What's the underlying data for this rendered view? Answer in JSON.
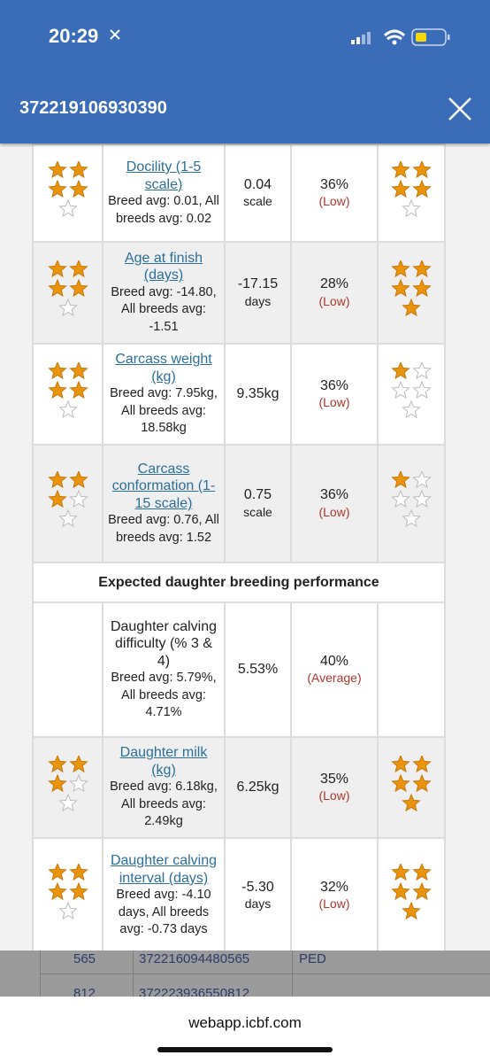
{
  "status_bar": {
    "time": "20:29"
  },
  "header": {
    "title": "372219106930390"
  },
  "table": {
    "rows": [
      {
        "stars_left": 4,
        "trait": "Docility (1-5 scale)",
        "trait_link": true,
        "averages": "Breed avg: 0.01, All breeds avg: 0.02",
        "value": "0.04",
        "unit": "scale",
        "reliability": "36%",
        "reliability_label": "(Low)",
        "stars_right": 4
      },
      {
        "stars_left": 4,
        "trait": "Age at finish (days)",
        "trait_link": true,
        "averages": "Breed avg: -14.80, All breeds avg: -1.51",
        "value": "-17.15",
        "unit": "days",
        "reliability": "28%",
        "reliability_label": "(Low)",
        "stars_right": 5
      },
      {
        "stars_left": 4,
        "trait": "Carcass weight (kg)",
        "trait_link": true,
        "averages": "Breed avg: 7.95kg, All breeds avg: 18.58kg",
        "value": "9.35kg",
        "reliability": "36%",
        "reliability_label": "(Low)",
        "stars_right": 1
      },
      {
        "stars_left": 3,
        "trait": "Carcass conformation (1-15 scale)",
        "trait_link": true,
        "averages": "Breed avg: 0.76, All breeds avg: 1.52",
        "value": "0.75",
        "unit": "scale",
        "reliability": "36%",
        "reliability_label": "(Low)",
        "stars_right": 1
      }
    ],
    "section": "Expected daughter breeding performance",
    "daughter_rows": [
      {
        "trait": "Daughter calving difficulty (% 3 & 4)",
        "trait_link": false,
        "averages": "Breed avg: 5.79%, All breeds avg: 4.71%",
        "value": "5.53%",
        "reliability": "40%",
        "reliability_label": "(Average)"
      },
      {
        "stars_left": 3,
        "trait": "Daughter milk (kg)",
        "trait_link": true,
        "averages": "Breed avg: 6.18kg, All breeds avg: 2.49kg",
        "value": "6.25kg",
        "reliability": "35%",
        "reliability_label": "(Low)",
        "stars_right": 5
      },
      {
        "stars_left": 4,
        "trait": "Daughter calving interval (days)",
        "trait_link": true,
        "averages": "Breed avg: -4.10 days, All breeds avg: -0.73 days",
        "value": "-5.30",
        "unit": "days",
        "reliability": "32%",
        "reliability_label": "(Low)",
        "stars_right": 5
      }
    ]
  },
  "background_rows": [
    [
      "565",
      "372216094480565",
      "PED"
    ],
    [
      "812",
      "372223936550812"
    ]
  ],
  "footer": {
    "url": "webapp.icbf.com"
  }
}
